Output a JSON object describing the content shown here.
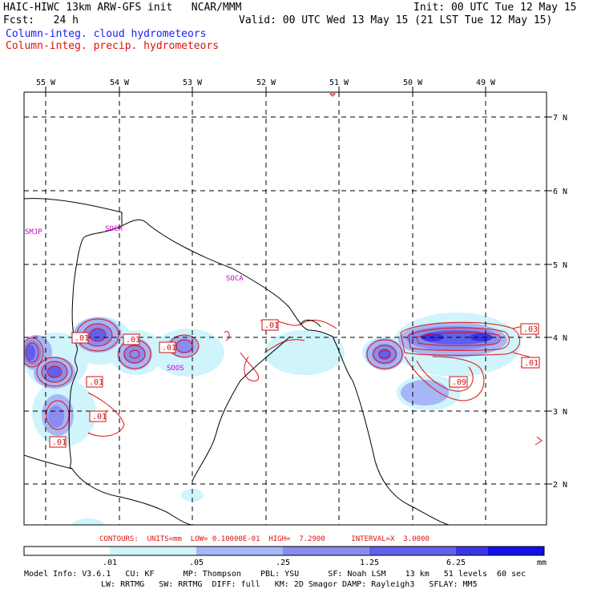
{
  "header": {
    "title": "HAIC-HIWC 13km ARW-GFS init   NCAR/MMM",
    "init": "Init: 00 UTC Tue 12 May 15",
    "fcst": "Fcst:   24 h",
    "valid": "Valid: 00 UTC Wed 13 May 15 (21 LST Tue 12 May 15)",
    "field1": "Column-integ. cloud hydrometeors",
    "field2": "Column-integ. precip. hydrometeors"
  },
  "axes": {
    "lon_labels": [
      "55 W",
      "54 W",
      "53 W",
      "52 W",
      "51 W",
      "50 W",
      "49 W"
    ],
    "lat_labels": [
      "7 N",
      "6 N",
      "5 N",
      "4 N",
      "3 N",
      "2 N"
    ]
  },
  "stations": [
    "SMJP",
    "SOCM",
    "SOCA",
    "SOOS"
  ],
  "contour_labels": [
    ".01",
    ".01",
    ".01",
    ".01",
    ".01",
    ".01",
    ".01",
    ".03",
    ".01",
    ".09"
  ],
  "contour_info": "CONTOURS:  UNITS=mm  LOW= 0.10000E-01  HIGH=  7.2900      INTERVAL=X  3.0000",
  "colorbar": {
    "ticks": [
      ".01",
      ".05",
      ".25",
      "1.25",
      "6.25"
    ],
    "unit": "mm",
    "colors": [
      "#ffffff",
      "#cff4fb",
      "#a7b6f5",
      "#8a8cf0",
      "#6060ea",
      "#3b35e4",
      "#1010e8"
    ]
  },
  "model_info": {
    "line1": "Model Info: V3.6.1   CU: KF      MP: Thompson    PBL: YSU      SF: Noah LSM    13 km   51 levels  60 sec",
    "line2": "LW: RRTMG   SW: RRTMG  DIFF: full   KM: 2D Smagor DAMP: Rayleigh3   SFLAY: MM5"
  }
}
